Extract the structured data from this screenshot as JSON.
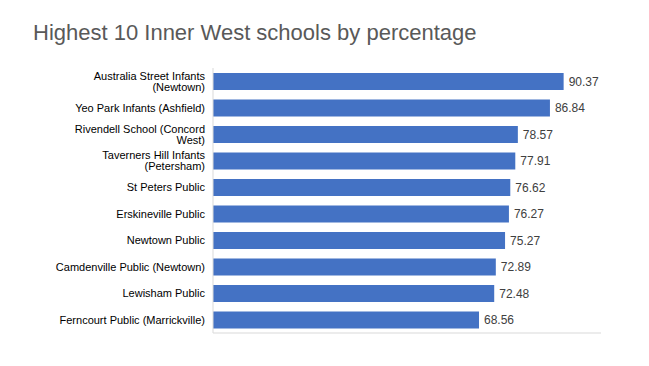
{
  "chart_data": {
    "type": "bar",
    "title": "Highest 10 Inner West schools by percentage",
    "orientation": "horizontal",
    "categories": [
      "Australia Street Infants (Newtown)",
      "Yeo Park Infants (Ashfield)",
      "Rivendell School (Concord West)",
      "Taverners Hill Infants (Petersham)",
      "St Peters Public",
      "Erskineville Public",
      "Newtown Public",
      "Camdenville Public (Newtown)",
      "Lewisham Public",
      "Ferncourt Public (Marrickville)"
    ],
    "values": [
      90.37,
      86.84,
      78.57,
      77.91,
      76.62,
      76.27,
      75.27,
      72.89,
      72.48,
      68.56
    ],
    "color": "#4472c4",
    "xlim": [
      0,
      100
    ],
    "data_labels": true,
    "tick_labels": "y",
    "grid": false
  }
}
